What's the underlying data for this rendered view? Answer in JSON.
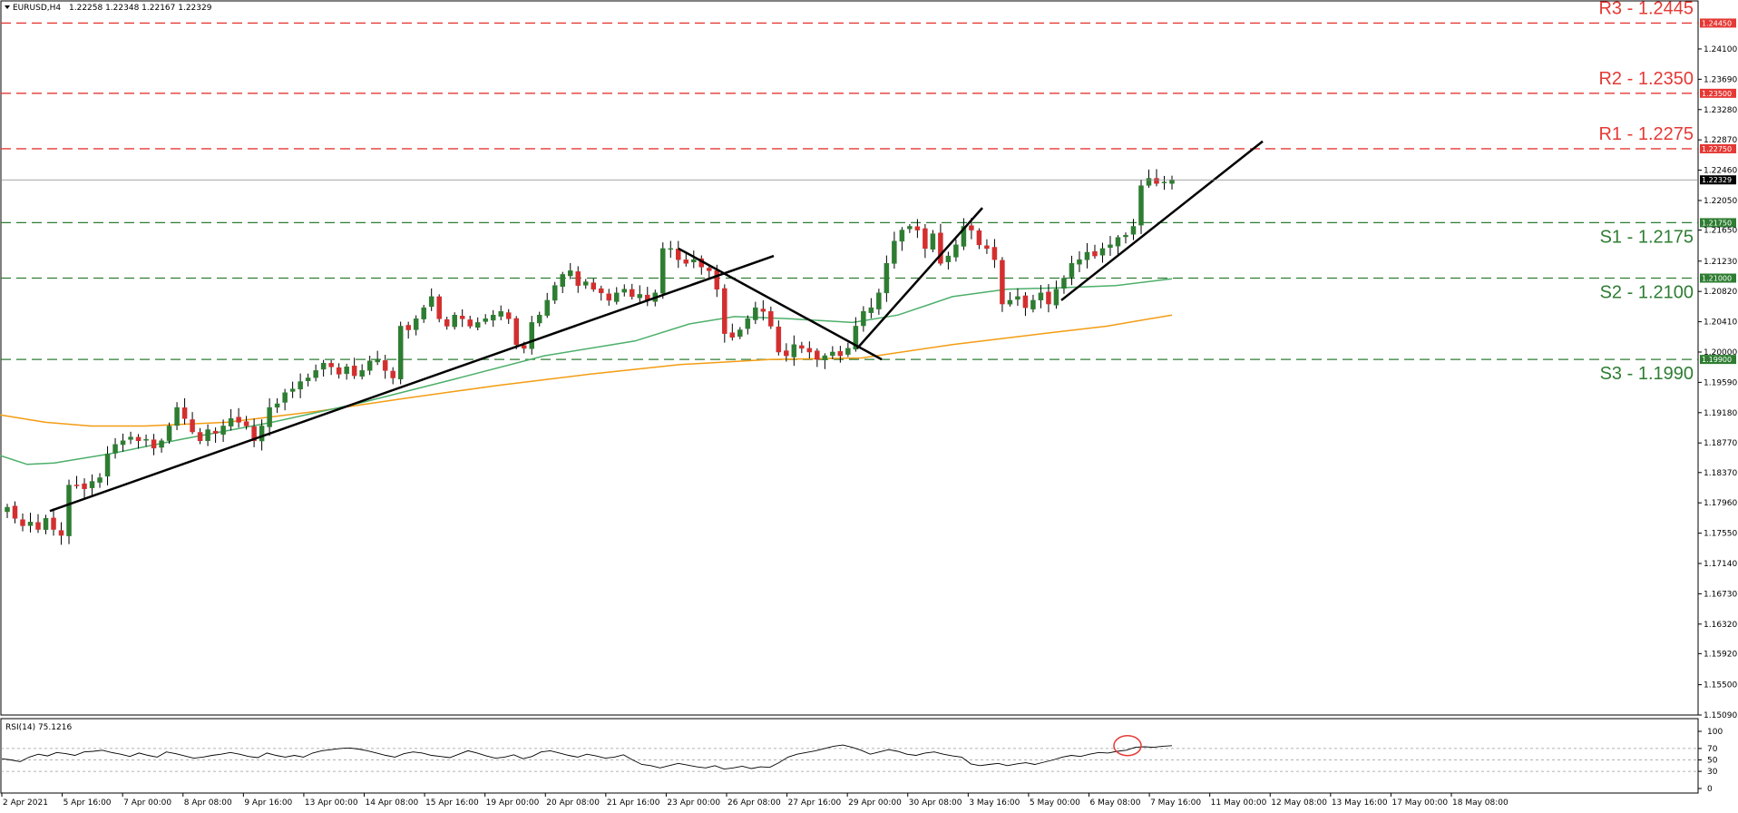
{
  "header": {
    "symbol": "EURUSD,H4",
    "ohlc": "1.22258 1.22348 1.22167 1.22329"
  },
  "rsi_header": "RSI(14) 75.1216",
  "colors": {
    "bull": "#2e7d32",
    "bear": "#d32f2f",
    "resistance": "#e53935",
    "support": "#2e7d32",
    "sma_fast": "#4caf6a",
    "sma_slow": "#f39c12",
    "trendline": "#000000",
    "rsi_line": "#000000",
    "rsi_circle": "#e53935",
    "current_price": "#000000"
  },
  "chart_data": {
    "type": "candlestick",
    "price_range": [
      1.1509,
      1.2475
    ],
    "price_ticks": [
      "1.24100",
      "1.23690",
      "1.23280",
      "1.22870",
      "1.22460",
      "1.22050",
      "1.21650",
      "1.21230",
      "1.20820",
      "1.20410",
      "1.20000",
      "1.19590",
      "1.19180",
      "1.18770",
      "1.18370",
      "1.17960",
      "1.17550",
      "1.17140",
      "1.16730",
      "1.16320",
      "1.15920",
      "1.15500",
      "1.15090"
    ],
    "time_ticks": [
      "2 Apr 2021",
      "5 Apr 16:00",
      "7 Apr 00:00",
      "8 Apr 08:00",
      "9 Apr 16:00",
      "13 Apr 00:00",
      "14 Apr 08:00",
      "15 Apr 16:00",
      "19 Apr 00:00",
      "20 Apr 08:00",
      "21 Apr 16:00",
      "23 Apr 00:00",
      "26 Apr 08:00",
      "27 Apr 16:00",
      "29 Apr 00:00",
      "30 Apr 08:00",
      "3 May 16:00",
      "5 May 00:00",
      "6 May 08:00",
      "7 May 16:00",
      "11 May 00:00",
      "12 May 08:00",
      "13 May 16:00",
      "17 May 00:00",
      "18 May 08:00"
    ],
    "levels": [
      {
        "label": "R3 - 1.2445",
        "tag": "1.24450",
        "value": 1.2445,
        "kind": "resistance"
      },
      {
        "label": "R2 - 1.2350",
        "tag": "1.23500",
        "value": 1.235,
        "kind": "resistance"
      },
      {
        "label": "R1 - 1.2275",
        "tag": "1.22750",
        "value": 1.2275,
        "kind": "resistance"
      },
      {
        "label": "S1 - 1.2175",
        "tag": "1.21750",
        "value": 1.2175,
        "kind": "support"
      },
      {
        "label": "S2 - 1.2100",
        "tag": "1.21000",
        "value": 1.21,
        "kind": "support"
      },
      {
        "label": "S3 - 1.1990",
        "tag": "1.19900",
        "value": 1.199,
        "kind": "support"
      }
    ],
    "current_price": {
      "value": 1.22329,
      "tag": "1.22329"
    },
    "close_path": [
      1.179,
      1.1775,
      1.1765,
      1.177,
      1.176,
      1.1775,
      1.176,
      1.1752,
      1.182,
      1.182,
      1.1815,
      1.1825,
      1.183,
      1.1862,
      1.1875,
      1.188,
      1.1885,
      1.188,
      1.1882,
      1.187,
      1.188,
      1.19,
      1.1925,
      1.191,
      1.1892,
      1.188,
      1.1895,
      1.189,
      1.19,
      1.191,
      1.1905,
      1.19,
      1.188,
      1.19,
      1.1925,
      1.193,
      1.1945,
      1.195,
      1.196,
      1.1965,
      1.1975,
      1.1985,
      1.198,
      1.197,
      1.198,
      1.1968,
      1.1975,
      1.1988,
      1.199,
      1.1975,
      1.1965,
      1.2035,
      1.203,
      1.2045,
      1.206,
      1.2075,
      1.2045,
      1.2035,
      1.205,
      1.2045,
      1.2035,
      1.204,
      1.2045,
      1.205,
      1.2055,
      1.2045,
      1.201,
      1.2005,
      1.204,
      1.205,
      1.207,
      1.209,
      1.2105,
      1.211,
      1.209,
      1.2095,
      1.2085,
      1.208,
      1.207,
      1.208,
      1.2085,
      1.2075,
      1.2078,
      1.207,
      1.208,
      1.214,
      1.214,
      1.2125,
      1.212,
      1.2125,
      1.2115,
      1.211,
      1.2085,
      1.2025,
      1.202,
      1.203,
      1.2045,
      1.206,
      1.2055,
      1.2035,
      1.2,
      1.1995,
      1.201,
      1.2005,
      1.2,
      1.199,
      1.1995,
      1.2,
      1.1995,
      1.2005,
      1.2035,
      1.2055,
      1.206,
      1.208,
      1.212,
      1.215,
      1.2165,
      1.217,
      1.2165,
      1.214,
      1.216,
      1.212,
      1.213,
      1.2145,
      1.217,
      1.2165,
      1.2145,
      1.214,
      1.2125,
      1.2065,
      1.207,
      1.2075,
      1.206,
      1.207,
      1.208,
      1.2065,
      1.2085,
      1.21,
      1.212,
      1.2125,
      1.2135,
      1.213,
      1.214,
      1.2145,
      1.2155,
      1.2158,
      1.217,
      1.2225,
      1.2235,
      1.2228,
      1.223,
      1.2233
    ],
    "sma_fast": [
      [
        0,
        1.186
      ],
      [
        30,
        1.1848
      ],
      [
        60,
        1.185
      ],
      [
        120,
        1.1862
      ],
      [
        200,
        1.1882
      ],
      [
        300,
        1.1905
      ],
      [
        400,
        1.1932
      ],
      [
        500,
        1.1963
      ],
      [
        600,
        1.1995
      ],
      [
        700,
        1.2015
      ],
      [
        760,
        1.2038
      ],
      [
        810,
        1.2048
      ],
      [
        870,
        1.2045
      ],
      [
        940,
        1.204
      ],
      [
        990,
        1.205
      ],
      [
        1050,
        1.2075
      ],
      [
        1110,
        1.2085
      ],
      [
        1170,
        1.2087
      ],
      [
        1230,
        1.209
      ],
      [
        1292,
        1.2099
      ]
    ],
    "sma_slow": [
      [
        0,
        1.1915
      ],
      [
        50,
        1.1905
      ],
      [
        100,
        1.19
      ],
      [
        160,
        1.19
      ],
      [
        250,
        1.1905
      ],
      [
        350,
        1.192
      ],
      [
        450,
        1.1938
      ],
      [
        550,
        1.1955
      ],
      [
        650,
        1.197
      ],
      [
        750,
        1.1983
      ],
      [
        850,
        1.199
      ],
      [
        950,
        1.1992
      ],
      [
        1050,
        1.201
      ],
      [
        1150,
        1.2025
      ],
      [
        1220,
        1.2035
      ],
      [
        1292,
        1.205
      ]
    ],
    "trendlines": [
      {
        "x": [
          55,
          853
        ],
        "y": [
          1.1785,
          1.213
        ]
      },
      {
        "x": [
          748,
          972
        ],
        "y": [
          1.214,
          1.199
        ]
      },
      {
        "x": [
          945,
          1083
        ],
        "y": [
          1.2005,
          1.2195
        ]
      },
      {
        "x": [
          1170,
          1392
        ],
        "y": [
          1.207,
          1.2285
        ]
      }
    ],
    "rsi": {
      "range": [
        0,
        100
      ],
      "ticks": [
        "100",
        "70",
        "50",
        "30",
        "0"
      ],
      "levels": [
        70,
        50,
        30
      ],
      "values": [
        52,
        50,
        47,
        55,
        60,
        57,
        63,
        61,
        58,
        64,
        65,
        67,
        63,
        60,
        56,
        62,
        58,
        55,
        64,
        61,
        57,
        53,
        55,
        58,
        60,
        63,
        60,
        56,
        54,
        62,
        58,
        55,
        58,
        55,
        62,
        66,
        68,
        70,
        71,
        69,
        66,
        62,
        58,
        55,
        61,
        64,
        62,
        58,
        56,
        54,
        60,
        66,
        62,
        57,
        53,
        55,
        59,
        52,
        56,
        64,
        66,
        62,
        58,
        55,
        60,
        57,
        53,
        55,
        59,
        50,
        42,
        40,
        36,
        40,
        44,
        41,
        38,
        36,
        40,
        34,
        36,
        39,
        35,
        38,
        37,
        45,
        55,
        60,
        63,
        66,
        70,
        74,
        76,
        72,
        67,
        60,
        64,
        68,
        65,
        60,
        58,
        62,
        64,
        60,
        57,
        55,
        43,
        40,
        42,
        44,
        40,
        43,
        45,
        42,
        46,
        50,
        55,
        58,
        56,
        60,
        63,
        62,
        65,
        67,
        72,
        73,
        72,
        74,
        75
      ]
    }
  }
}
